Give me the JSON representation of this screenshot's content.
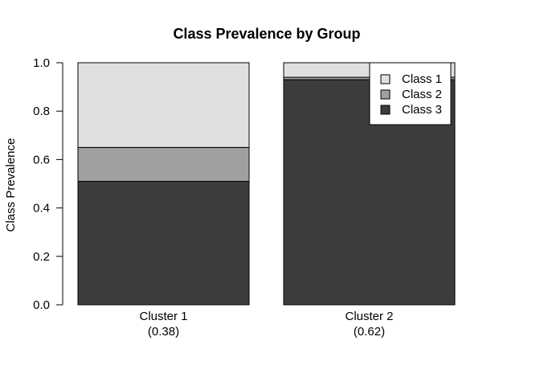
{
  "chart_data": {
    "type": "bar",
    "stacked": true,
    "title": "Class Prevalence by Group",
    "xlabel": "",
    "ylabel": "Class Prevalence",
    "ylim": [
      0,
      1
    ],
    "yticks": [
      "0.0",
      "0.2",
      "0.4",
      "0.6",
      "0.8",
      "1.0"
    ],
    "categories": [
      "Cluster 1",
      "Cluster 2"
    ],
    "category_sublabels": [
      "(0.38)",
      "(0.62)"
    ],
    "series": [
      {
        "name": "Class 3",
        "values": [
          0.51,
          0.93
        ],
        "color": "#3c3c3c"
      },
      {
        "name": "Class 2",
        "values": [
          0.14,
          0.01
        ],
        "color": "#a0a0a0"
      },
      {
        "name": "Class 1",
        "values": [
          0.35,
          0.06
        ],
        "color": "#e0e0e0"
      }
    ],
    "legend": {
      "position": "top-right",
      "entries": [
        {
          "label": "Class 1",
          "color": "#e0e0e0"
        },
        {
          "label": "Class 2",
          "color": "#a0a0a0"
        },
        {
          "label": "Class 3",
          "color": "#3c3c3c"
        }
      ]
    },
    "grid": false
  }
}
